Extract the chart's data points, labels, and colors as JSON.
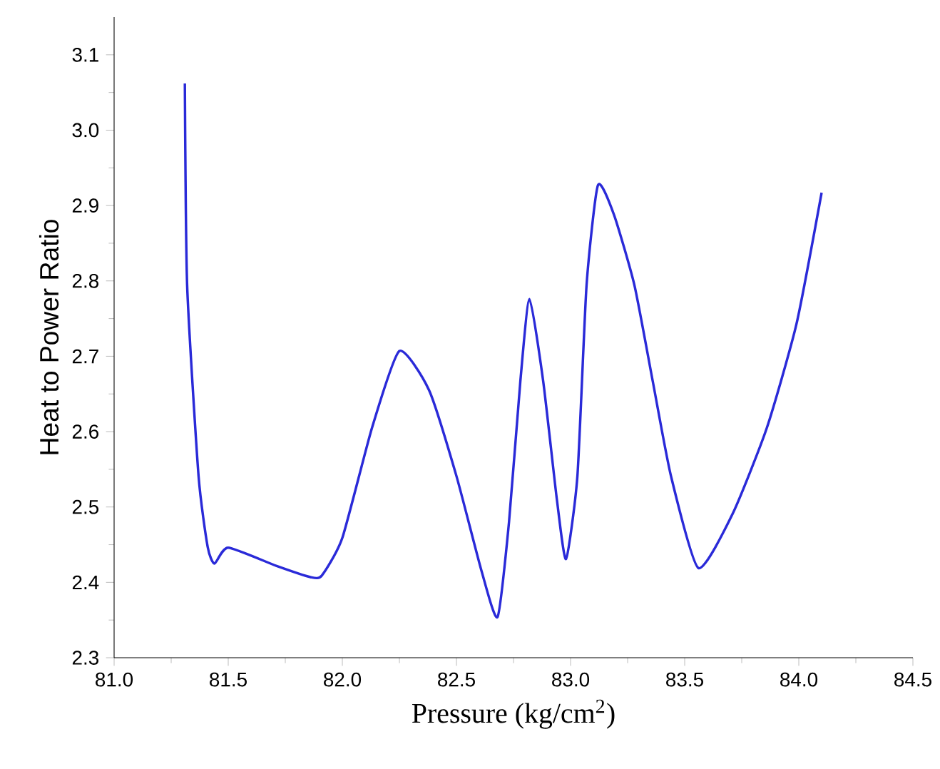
{
  "chart_data": {
    "type": "line",
    "xlabel": "Pressure (kg/cm$^{2}$)",
    "ylabel": "Heat to Power Ratio",
    "xlim": [
      81.0,
      84.5
    ],
    "ylim": [
      2.3,
      3.15
    ],
    "xticks": [
      {
        "value": 81.0,
        "label": "81.0"
      },
      {
        "value": 81.5,
        "label": "81.5"
      },
      {
        "value": 82.0,
        "label": "82.0"
      },
      {
        "value": 82.5,
        "label": "82.5"
      },
      {
        "value": 83.0,
        "label": "83.0"
      },
      {
        "value": 83.5,
        "label": "83.5"
      },
      {
        "value": 84.0,
        "label": "84.0"
      },
      {
        "value": 84.5,
        "label": "84.5"
      }
    ],
    "yticks": [
      {
        "value": 2.3,
        "label": "2.3"
      },
      {
        "value": 2.4,
        "label": "2.4"
      },
      {
        "value": 2.5,
        "label": "2.5"
      },
      {
        "value": 2.6,
        "label": "2.6"
      },
      {
        "value": 2.7,
        "label": "2.7"
      },
      {
        "value": 2.8,
        "label": "2.8"
      },
      {
        "value": 2.9,
        "label": "2.9"
      },
      {
        "value": 3.0,
        "label": "3.0"
      },
      {
        "value": 3.1,
        "label": "3.1"
      }
    ],
    "grid": false,
    "series": [
      {
        "color": "#2a2ad8",
        "x": [
          81.31,
          81.32,
          81.37,
          81.41,
          81.44,
          81.5,
          81.71,
          81.86,
          81.91,
          82.0,
          82.13,
          82.25,
          82.38,
          82.5,
          82.61,
          82.68,
          82.73,
          82.78,
          82.82,
          82.88,
          82.94,
          82.98,
          83.03,
          83.07,
          83.12,
          83.19,
          83.28,
          83.36,
          83.44,
          83.56,
          83.71,
          83.86,
          83.99,
          84.1
        ],
        "values": [
          3.062,
          2.794,
          2.541,
          2.447,
          2.425,
          2.446,
          2.422,
          2.407,
          2.409,
          2.459,
          2.605,
          2.707,
          2.655,
          2.541,
          2.415,
          2.354,
          2.479,
          2.667,
          2.776,
          2.667,
          2.51,
          2.431,
          2.541,
          2.794,
          2.927,
          2.888,
          2.794,
          2.667,
          2.541,
          2.419,
          2.491,
          2.605,
          2.743,
          2.917
        ]
      }
    ]
  }
}
